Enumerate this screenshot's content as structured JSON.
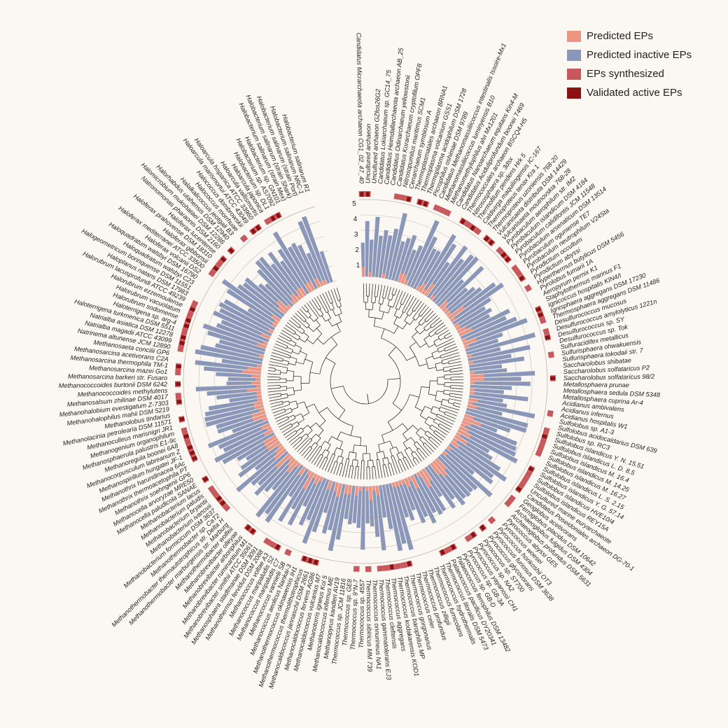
{
  "legend": [
    {
      "label": "Predicted EPs",
      "color": "#eb9582"
    },
    {
      "label": "Predicted inactive EPs",
      "color": "#8b97b8"
    },
    {
      "label": "EPs synthesized",
      "color": "#c8585c"
    },
    {
      "label": "Validated active EPs",
      "color": "#8c1212"
    }
  ],
  "colors": {
    "tree": "#1c1c1c",
    "guide": "#c9b9b0",
    "background": "#fbf8f3"
  },
  "axis_ticks": [
    "5",
    "4",
    "3",
    "2",
    "1"
  ],
  "species": [
    "Candidatus Micrarchaeota archaeon CG1_02_47_40",
    "Uncultured archaeon",
    "Uncultured archaeon GZfos26G2",
    "Candidatus Lokiarchaeum sp. GC14_75",
    "Candidatus Heimdallarchaeota archaeon AB_25",
    "Candidatus Odinarchaeum yellowstonii",
    "Candidatus Korarchaeum cryptofilum OPF8",
    "Nitrosopumilus maritimus SCM1",
    "Cenarchaeum symbiosum A",
    "Thermoplasmatales archaeon BRNA1",
    "Thermoplasma volcanium GSS1",
    "Thermoplasma acidophilum DSM 1728",
    "Picrophilus oshimae DSM 9789",
    "Candidatus Methanomassiliicoccus intestinalis Issoire-Mx1",
    "Methanomassiliicoccus luminyensis B10",
    "Methanomethylophilus alvi Mx1201",
    "Candidatus Nanoarchaeum equitans Kin4-M",
    "Candidatus Aciduliprofundum boonei T469",
    "Thermococcales archaeon BSCQ4-H5",
    "Nitrososphaera sp. 3dsx",
    "Thermofilum pendens Hrk 5",
    "Caldivirga maquilingensis IC-167",
    "Thermoproteus tenax Kra 1",
    "Thermoproteus uzoniensis 768-20",
    "Vulcanisaeta distributa DSM 14429",
    "Vulcanisaeta moutnovskia 768-28",
    "Pyrobaculum aerophilum str. IM2",
    "Pyrobaculum islandicum DSM 4184",
    "Pyrobaculum calidifontis JCM 11548",
    "Pyrobaculum arsenaticum DSM 13514",
    "Pyrobaculum oguniense TE7",
    "Pyrobaculum neutrophilum V24Sta",
    "Pyrodictium occultum",
    "Pyrodictium abyssi",
    "Hyperthermus butylicus DSM 5456",
    "Pyrolobus fumarii 1A",
    "Aeropyrum pernix K1",
    "Staphylothermus marinus F1",
    "Ignicoccus hospitalis KIN4/I",
    "Ignisphaera aggregans DSM 17230",
    "Thermosphaera aggregans DSM 11486",
    "Desulfurococcus mucosus",
    "Desulfurococcus amylolyticus 1221n",
    "Desulfurococcus sp. SY",
    "Desulfurococcus sp. Tok",
    "Sulfuracidifex metallicus",
    "Sulfurisphaera ohwakuensis",
    "Sulfurisphaera tokodaii str. 7",
    "Saccharolobus shibatae",
    "Saccharolobus solfataricus P2",
    "Saccharolobus solfataricus 98/2",
    "Metallosphaera prunae",
    "Metallosphaera sedula DSM 5348",
    "Metallosphaera cuprina Ar-4",
    "Acidianus ambivalens",
    "Acidianus infernus",
    "Acidianus hospitalis W1",
    "Sulfolobus sp. A1-3",
    "Sulfolobus acidocaldarius DSM 639",
    "Sulfolobus sp. RC3",
    "Sulfolobus islandicus Y. N. 15.51",
    "Sulfolobus islandicus L. D. 8.5",
    "Sulfolobus islandicus M. 16.4",
    "Sulfolobus islandicus M. 14.25",
    "Sulfolobus islandicus M. 16.27",
    "Sulfolobus islandicus L. S. 2.15",
    "Sulfolobus islandicus Y. G. 57.14",
    "Sulfolobus islandicus HVE10/4",
    "Sulfolobus islandicus REY15A",
    "Uncultured marine euryarchaeote",
    "Candidatus Poseidoniales archaeon DG-70-1",
    "Geoglobus acetivorans",
    "Ferroglobus placidus DSM 10642",
    "Archaeoglobus fulgidus DSM 4304",
    "Archaeoglobus profundus DSM 5631",
    "Pyrococcus abyssi GE5",
    "Pyrococcus woesei",
    "Pyrococcus horikoshii OT3",
    "Pyrococcus furiosus DSM 3638",
    "Pyrococcus glycovorans",
    "Pyrococcus sp. ST700",
    "Pyrococcus sp. NA2",
    "Pyrococcus yayanosii CH1",
    "Pyrococcus sp. GB-3A",
    "Pyrococcus sp. GB-D",
    "Palaeococcus ferrophilus DSM 13482",
    "Palaeococcus pacificus DY20341",
    "Thermococcus litoralis DSM 5473",
    "Thermococcus hydrothermalis",
    "Thermococcus fumicolans",
    "Thermococcus zilligii",
    "Thermococcus profundus",
    "Thermococcus celer",
    "Thermococcus gorgonarius",
    "Thermococcus barophilus MP",
    "Thermococcus kodakarensis KOD1",
    "Thermococcus aggregans",
    "Thermococcus cleftensis",
    "Thermococcus gammatolerans EJ3",
    "Thermococcus onnurineus NA1",
    "Thermococcus sibiricus MM 739",
    "Thermococcus sp. 4557",
    "Thermococcus sp. 9°N-7",
    "Thermococcus sp. GE8",
    "Thermococcus sp. JCM 11816",
    "Methanopyrus kandleri AV19",
    "Methanocaldococcus infernus ME",
    "Methanotorris igneus Kol 5",
    "Methanocaldococcus vulcanius M7",
    "Methanocaldococcus fervens AG86",
    "Methanocaldococcus jannaschii DSM 2661",
    "Methanothermococcus thermolithotrophicus",
    "Methanothermococcus okinawensis IH1",
    "Methanococcus aeolicus Nankai-3",
    "Methanococcus vannielii SB",
    "Methanococcus maripaludis C7",
    "Methanococcus maripaludis S2",
    "Methanococcus voltae A3",
    "Methanothermus fervidus DSM 2088",
    "Methanosphaera stadtmanae DSM 3091",
    "Methanobrevibacter smithii ATCC 35061",
    "Methanobrevibacter ruminantium M1",
    "Methanobrevibacter arboriphilus",
    "Methanobrevibacter olleyae",
    "Methanothermobacter wolfeii",
    "Methanothermobacter marburgensis str. Marburg",
    "Methanothermobacter thermautotrophicus str. Delta H",
    "Methanothermobacter sp. CaT2",
    "Methanobacterium formicicum DSM 3637",
    "Methanobacterium ivanovii",
    "Methanobacterium bryantii",
    "Methanobacterium paludis",
    "Methanobacterium lacus",
    "Methanocella paludicola SANAE",
    "Methanocella arvoryzae MRE50",
    "Methanothrix soehngenii GP6",
    "Methanothrix thermoacetophila PT",
    "Methanothrix harundinacea 6Ac",
    "Methanospirillum hungatei JF-1",
    "Methanocorpusculum labreanum Z",
    "Methanoregula boonei 6A8",
    "Methanosphaerula palustris E1-9c",
    "Methanogenium organophilum",
    "Methanoculleus marisnigri JR1",
    "Methanolacinia petrolearia DSM 11571",
    "Methanolobus tindarius",
    "Methanohalophilus mahii DSM 5219",
    "Methanohalobium evestigatum Z-7303",
    "Methanosalsum zhilinae DSM 4017",
    "Methanococcoides methylutens",
    "Methanococcoides burtonii DSM 6242",
    "Methanosarcina barkeri str. Fusaro",
    "Methanosarcina mazei Go1",
    "Methanosarcina thermophila TM-1",
    "Methanosarcina acetivorans C2A",
    "Methanosaeta concilii GP6",
    "Natrinema altunense JCM 12890",
    "Natrialba magadii ATCC 43099",
    "Natrialba asiatica DSM 12278",
    "Haloterrigena turkmenica DSM 5511",
    "Haloterrigena sp. arg-4",
    "Halorubrum sodomense",
    "Halorubrum vacuolatum",
    "Halorubrum ezzemoulense",
    "Halorubrum lacusprofundi ATCC 49239",
    "Haloplanus natans DSM 17983",
    "Halogeometricum borinquense DSM 11551",
    "Haloquadratum walsbyi C23",
    "Haloquadratum walsbyi DSM 16790",
    "Haloferax volcanii DS2",
    "Haloferax mediterranei ATCC 33500",
    "Haloferax gibbonsii",
    "Haloferax prahovense DSM 18310",
    "Haloferax lucentense",
    "Natronomonas pharaonis DSM 2160",
    "Halomicrobium mukohataei DSM 12286",
    "Halorhabdus utahensis DSM 12940",
    "Halalkalicoccus jeotgali B3",
    "Halococcus morrhuae",
    "Halococcus dombrowskii",
    "Haloarcula marismortui ATCC 43049",
    "Haloarcula hispanica ATCC 33960",
    "Haloarcula vallismortis",
    "Haloarcula japonica",
    "Halobacterium sp. DL1",
    "Halobacterium sp. AS7092",
    "Halobacterium sp. GN101",
    "Halobacterium salinarum (strain Mex)",
    "Halobacterium salinarum (strain Shark)",
    "Halobacterium salinarum (strain Port)",
    "Halobacterium salinarum NRC-1",
    "Halobacterium salinarum R1"
  ],
  "predicted_ep_values": [
    0.6,
    0,
    0.3,
    0,
    0,
    0,
    0.3,
    0,
    0,
    0,
    0,
    0.6,
    0.6,
    0.3,
    0,
    0,
    0,
    0.3,
    0.6,
    0.3,
    0.9,
    0,
    0.3,
    0,
    0,
    0,
    0.6,
    0.3,
    0.3,
    0.3,
    1.2,
    0.3,
    0,
    0.3,
    0.3,
    0.6,
    0.9,
    0,
    0.3,
    0.9,
    0.3,
    0,
    0,
    0.3,
    0,
    0.3,
    0,
    0,
    0.3,
    0.9,
    0.9,
    0.3,
    0,
    0.3,
    0.3,
    0,
    0.6,
    0.3,
    0.6,
    0,
    0,
    0.6,
    1.2,
    0.6,
    0.3,
    0.6,
    0.9,
    0.3,
    0.9,
    0.3,
    0.6,
    0,
    0.3,
    0,
    0.3,
    0,
    0,
    0.9,
    1.2,
    0.9,
    0,
    0,
    0.9,
    1.2,
    0.3,
    0,
    0.9,
    0.3,
    0.6,
    0.3,
    0.3,
    0.3,
    0.3,
    0,
    0,
    0,
    0,
    0.6,
    0.3,
    0.9,
    0.3,
    0,
    0.3,
    0.6,
    0,
    0.6,
    0.6,
    0,
    0.9,
    0.6,
    0,
    0.6,
    0,
    0,
    0.3,
    0.6,
    0.3,
    1.2,
    0.3,
    0,
    0.6,
    0,
    0.3,
    0.9,
    0.6,
    0.3,
    1.2,
    0,
    0.9,
    0.6,
    0.3,
    0.9,
    0.9,
    0.9,
    0,
    0.6,
    0.3,
    0.6,
    0,
    0.3,
    0.9,
    0.9,
    0.3,
    0.6,
    0.6,
    0.3,
    0.3,
    0.3,
    0.9,
    0.3,
    0.6,
    0.3,
    0.6,
    1.2,
    0.9,
    0.3,
    0,
    0,
    0.3,
    0,
    0,
    0.6,
    0.3,
    0,
    0.6,
    0,
    0.3,
    0,
    0.3,
    0.3,
    0.6,
    0,
    0,
    0.6,
    0.9,
    0.3,
    0,
    0.3,
    0.6,
    0.3,
    0.6,
    0.6,
    0,
    0.6,
    0.6,
    0,
    0.6,
    0.3,
    0.3,
    0
  ],
  "predicted_inactive_ep_values": [
    2.2,
    3.6,
    2.4,
    3.9,
    2.7,
    3.1,
    2.8,
    3.3,
    4.4,
    2.6,
    2.9,
    3.2,
    2.3,
    2.7,
    4.6,
    3.6,
    2.9,
    2.9,
    4.3,
    3.8,
    2.6,
    4.1,
    3.3,
    3.9,
    4,
    2.3,
    3.8,
    2.1,
    2.5,
    2.8,
    3.7,
    4.1,
    2.9,
    2.3,
    2.6,
    2.3,
    3.6,
    3.2,
    3.8,
    4.4,
    2.6,
    2.2,
    4.6,
    2.2,
    4.1,
    2.8,
    3.6,
    2.1,
    2.4,
    4.2,
    3.3,
    3.9,
    2.7,
    2.2,
    3.8,
    2.2,
    2.5,
    4.4,
    2.3,
    4.1,
    4.1,
    3.1,
    2.3,
    3.8,
    3.9,
    4,
    4.3,
    2.4,
    2.8,
    3.6,
    4.3,
    3.5,
    3.7,
    2.4,
    4.2,
    3.2,
    3.1,
    3.2,
    3.1,
    3.4,
    2.7,
    3.2,
    2.1,
    3,
    3.1,
    2.8,
    3.4,
    2.8,
    3.1,
    2.1,
    2.7,
    2.4,
    4.5,
    4,
    4.4,
    2.9,
    2.1,
    4.2,
    3.3,
    2.6,
    2.4,
    4.1,
    2.7,
    2.4,
    2.5,
    2.2,
    3.6,
    4.4,
    3.1,
    3.4,
    2.1,
    3.5,
    4.4,
    2.9,
    3.4,
    2.2,
    3.7,
    2.7,
    3.8,
    2.1,
    4.3,
    3.9,
    4.4,
    2.4,
    2.8,
    3.4,
    2.8,
    3.1,
    4.1,
    2.3,
    3.4,
    3,
    2.4,
    2.9,
    3.8,
    4.2,
    3.4,
    3.6,
    4.2,
    2.4,
    3.3,
    3.3,
    3.9,
    3.9,
    3.8,
    3.5,
    2.1,
    2.9,
    3.5,
    4.2,
    2.2,
    2.1,
    2.9,
    3.7,
    4.3,
    2.6,
    4.4,
    4.1,
    3.2,
    3,
    3.9,
    4.3,
    3.5,
    3.3,
    4,
    3.7,
    3.9,
    3.7,
    2.1,
    3.9,
    4.5,
    3.5,
    3.3,
    3.4,
    2.5,
    2.2,
    3.2,
    3.7,
    3.7,
    2.9,
    3.6,
    2.7,
    3.4,
    4.5,
    3.2,
    3.3,
    3,
    2.3,
    4.4,
    4.6,
    2.1
  ],
  "ep_synthesized_marks": [
    1,
    1,
    0,
    0,
    0,
    0,
    1,
    1,
    1,
    0,
    1,
    1,
    0,
    1,
    1,
    1,
    0,
    0,
    1,
    1,
    1,
    1,
    0,
    1,
    1,
    0,
    1,
    1,
    1,
    0,
    1,
    1,
    1,
    0,
    1,
    0,
    0,
    0,
    1,
    1,
    1,
    0,
    1,
    1,
    0,
    0,
    1,
    0,
    0,
    0,
    1,
    0,
    0,
    0,
    0,
    0,
    1,
    0,
    0,
    1,
    1,
    1,
    1,
    1,
    0,
    0,
    1,
    1,
    1,
    1,
    1,
    0,
    1,
    1,
    0,
    0,
    0,
    1,
    0,
    1,
    0,
    1,
    1,
    0,
    0,
    1,
    1,
    1,
    0,
    0,
    0,
    0,
    0,
    1,
    1,
    1,
    1,
    1,
    1,
    0,
    1,
    0,
    1,
    0,
    0,
    0,
    0,
    0,
    0,
    1,
    1,
    1,
    0,
    0,
    1,
    0,
    1,
    1,
    1,
    0,
    0,
    1,
    1,
    0,
    0,
    0,
    0,
    1,
    1,
    1,
    1,
    1,
    0,
    1,
    0,
    0,
    0,
    1,
    1,
    1,
    1,
    1,
    1,
    0,
    1,
    0,
    0,
    1,
    1,
    0,
    1,
    0,
    1,
    1,
    0,
    0,
    1,
    1,
    1,
    1,
    1,
    1,
    1,
    1,
    1,
    0,
    0,
    0,
    0,
    0,
    1,
    1,
    1,
    1,
    0,
    1,
    0,
    0,
    1,
    0,
    1,
    1,
    0,
    1,
    1,
    1,
    0,
    0,
    0
  ],
  "validated_active_marks": [
    1,
    1,
    0,
    0,
    0,
    0,
    0,
    0,
    1,
    0,
    1,
    1,
    0,
    0,
    0,
    0,
    0,
    0,
    1,
    0,
    1,
    0,
    0,
    1,
    1,
    0,
    0,
    1,
    1,
    0,
    0,
    0,
    1,
    0,
    0,
    0,
    0,
    0,
    1,
    1,
    0,
    0,
    0,
    1,
    0,
    0,
    0,
    0,
    0,
    0,
    1,
    0,
    0,
    0,
    0,
    0,
    0,
    0,
    0,
    0,
    1,
    0,
    0,
    0,
    0,
    0,
    1,
    0,
    0,
    0,
    1,
    0,
    0,
    0,
    0,
    0,
    0,
    0,
    0,
    1,
    0,
    1,
    0,
    0,
    0,
    1,
    0,
    1,
    0,
    0,
    0,
    0,
    0,
    1,
    0,
    0,
    1,
    0,
    0,
    0,
    0,
    0,
    0,
    0,
    0,
    0,
    0,
    0,
    0,
    1,
    1,
    1,
    0,
    0,
    0,
    0,
    1,
    0,
    0,
    0,
    0,
    1,
    1,
    0,
    0,
    0,
    0,
    0,
    1,
    1,
    0,
    0,
    0,
    1,
    0,
    0,
    0,
    1,
    1,
    1,
    0,
    1,
    0,
    0,
    1,
    0,
    0,
    1,
    0,
    0,
    1,
    0,
    0,
    1,
    0,
    0,
    0,
    1,
    1,
    0,
    1,
    1,
    0,
    1,
    0,
    0,
    0,
    0,
    0,
    0,
    0,
    1,
    0,
    1,
    0,
    1,
    0,
    0,
    0,
    0,
    1,
    1,
    0,
    0,
    1,
    1,
    0,
    0,
    0
  ]
}
